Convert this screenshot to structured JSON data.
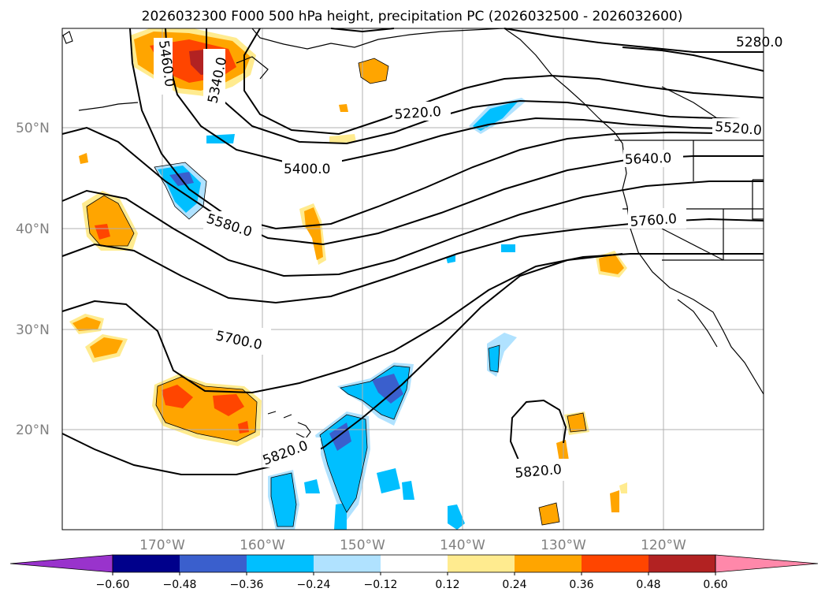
{
  "title": "2026032300 F000 500 hPa height, precipitation PC (2026032500 - 2026032600)",
  "map": {
    "projection": "lat-lon",
    "lon_range": [
      180,
      110
    ],
    "lat_range": [
      10,
      60
    ],
    "lat_ticks": [
      {
        "value": 50,
        "label": "50°N"
      },
      {
        "value": 40,
        "label": "40°N"
      },
      {
        "value": 30,
        "label": "30°N"
      },
      {
        "value": 20,
        "label": "20°N"
      }
    ],
    "lon_ticks": [
      {
        "value": 170,
        "label": "170°W"
      },
      {
        "value": 160,
        "label": "160°W"
      },
      {
        "value": 150,
        "label": "150°W"
      },
      {
        "value": 140,
        "label": "140°W"
      },
      {
        "value": 130,
        "label": "130°W"
      },
      {
        "value": 120,
        "label": "120°W"
      }
    ],
    "grid": true
  },
  "height_contours": {
    "variable": "500 hPa height",
    "labels": [
      "5280.0",
      "5460.0",
      "5340.0",
      "5220.0",
      "5520.0",
      "5400.0",
      "5640.0",
      "5580.0",
      "5760.0",
      "5700.0",
      "5820.0",
      "5820.0"
    ]
  },
  "colorbar": {
    "variable": "precipitation PC",
    "ticks": [
      "−0.60",
      "−0.48",
      "−0.36",
      "−0.24",
      "−0.12",
      "0.12",
      "0.24",
      "0.36",
      "0.48",
      "0.60"
    ],
    "colors": [
      "#9933cc",
      "#00008b",
      "#3a5fcd",
      "#00bfff",
      "#b0e2ff",
      "#ffffff",
      "#ffeb8f",
      "#ffa500",
      "#ff4500",
      "#b22222",
      "#ff88aa"
    ],
    "extend": "both"
  },
  "colors": {
    "land_outline": "#000000",
    "grid": "#b0b0b0",
    "contour": "#000000"
  }
}
